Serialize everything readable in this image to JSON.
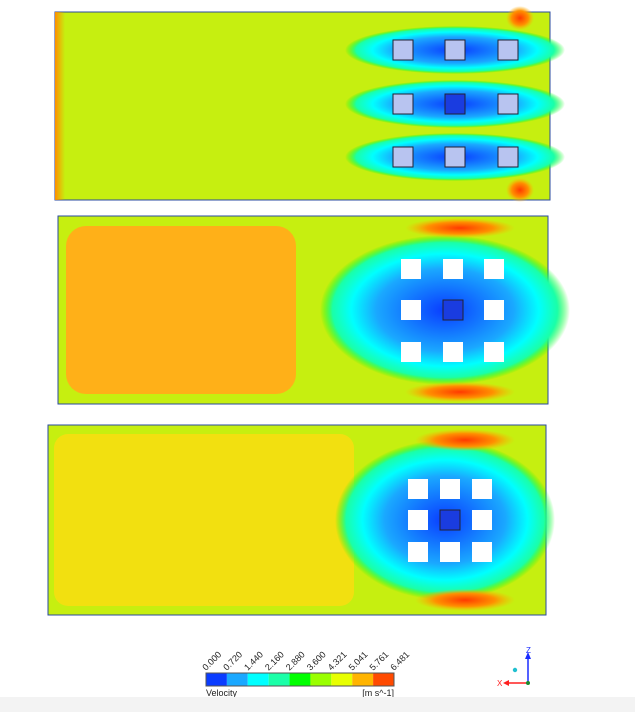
{
  "legend": {
    "title": "Velocity",
    "unit": "[m s^-1]",
    "ticks": [
      "0.000",
      "0.720",
      "1.440",
      "2.160",
      "2.880",
      "3.600",
      "4.321",
      "5.041",
      "5.761",
      "6.481"
    ],
    "colors": [
      "#0a3cff",
      "#1aa8ff",
      "#00ffff",
      "#1affa8",
      "#00ff00",
      "#9aff00",
      "#e8ff00",
      "#ffb400",
      "#ff4a00"
    ]
  },
  "axes": {
    "z_label": "Z",
    "x_label": "X",
    "z_color": "#1a2cff",
    "x_color": "#ff2020"
  },
  "panels": [
    {
      "background": "#c6ef10",
      "obstacle_fill": "#b8c4f0"
    },
    {
      "background": "#ffb018",
      "obstacle_fill": "#ffffff"
    },
    {
      "background": "#f2e010",
      "obstacle_fill": "#ffffff"
    }
  ]
}
